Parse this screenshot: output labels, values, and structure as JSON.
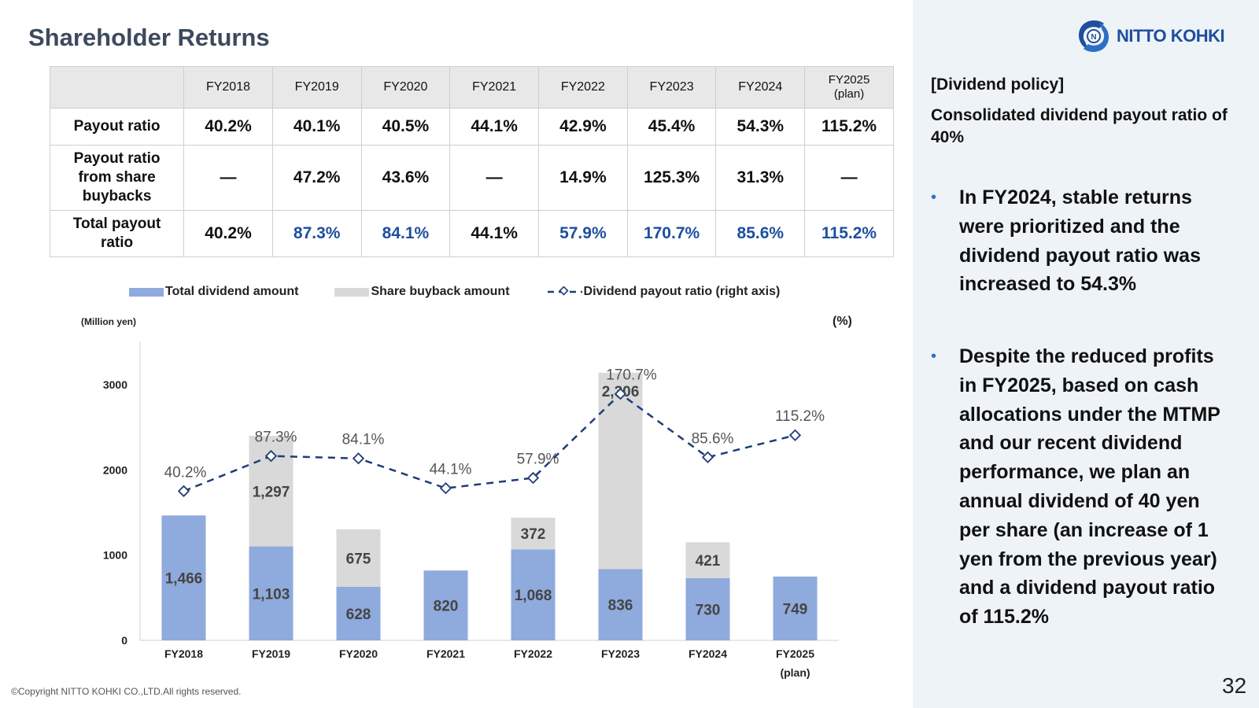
{
  "title": "Shareholder Returns",
  "logo": {
    "text": "NITTO KOHKI",
    "icon": "nitto-kohki-logo-mark",
    "color": "#1f4e9c"
  },
  "table": {
    "headers": [
      {
        "label": "FY2018",
        "sub": ""
      },
      {
        "label": "FY2019",
        "sub": ""
      },
      {
        "label": "FY2020",
        "sub": ""
      },
      {
        "label": "FY2021",
        "sub": ""
      },
      {
        "label": "FY2022",
        "sub": ""
      },
      {
        "label": "FY2023",
        "sub": ""
      },
      {
        "label": "FY2024",
        "sub": ""
      },
      {
        "label": "FY2025",
        "sub": "(plan)"
      }
    ],
    "rows": [
      {
        "label": "Payout ratio",
        "values": [
          "40.2%",
          "40.1%",
          "40.5%",
          "44.1%",
          "42.9%",
          "45.4%",
          "54.3%",
          "115.2%"
        ]
      },
      {
        "label": "Payout ratio from share buybacks",
        "values": [
          "—",
          "47.2%",
          "43.6%",
          "—",
          "14.9%",
          "125.3%",
          "31.3%",
          "—"
        ]
      },
      {
        "label": "Total payout ratio",
        "values": [
          "40.2%",
          "87.3%",
          "84.1%",
          "44.1%",
          "57.9%",
          "170.7%",
          "85.6%",
          "115.2%"
        ],
        "highlight": [
          false,
          true,
          true,
          false,
          true,
          true,
          true,
          true
        ]
      }
    ]
  },
  "legend": {
    "dividend": "Total dividend amount",
    "buyback": "Share buyback amount",
    "ratio": "Dividend payout ratio (right axis)"
  },
  "units": {
    "left": "(Million yen)",
    "right": "(%)"
  },
  "chart_data": {
    "type": "bar",
    "stacked": true,
    "categories": [
      "FY2018",
      "FY2019",
      "FY2020",
      "FY2021",
      "FY2022",
      "FY2023",
      "FY2024",
      "FY2025"
    ],
    "category_sublabels": [
      "",
      "",
      "",
      "",
      "",
      "",
      "",
      "(plan)"
    ],
    "series": [
      {
        "name": "Total dividend amount",
        "values": [
          1466,
          1103,
          628,
          820,
          1068,
          836,
          730,
          749
        ],
        "labels": [
          "1,466",
          "1,103",
          "628",
          "820",
          "1,068",
          "836",
          "730",
          "749"
        ],
        "color": "#8faadc"
      },
      {
        "name": "Share buyback amount",
        "values": [
          0,
          1297,
          675,
          0,
          372,
          2306,
          421,
          0
        ],
        "labels": [
          "",
          "1,297",
          "675",
          "",
          "372",
          "2,306",
          "421",
          ""
        ],
        "color": "#d9d9d9"
      }
    ],
    "line_series": {
      "name": "Dividend payout ratio (right axis)",
      "values": [
        40.2,
        87.3,
        84.1,
        44.1,
        57.9,
        170.7,
        85.6,
        115.2
      ],
      "labels": [
        "40.2%",
        "87.3%",
        "84.1%",
        "44.1%",
        "57.9%",
        "170.7%",
        "85.6%",
        "115.2%"
      ],
      "color": "#1f3d7a"
    },
    "ylim": [
      0,
      3500
    ],
    "yticks": [
      0,
      1000,
      2000,
      3000
    ],
    "y2lim": [
      -160,
      240
    ],
    "ylabel": "(Million yen)",
    "y2label": "(%)",
    "grid": false,
    "legend_position": "top"
  },
  "policy": {
    "heading": "[Dividend policy]",
    "text": "Consolidated dividend payout ratio of 40%",
    "bullets": [
      "In FY2024, stable returns were prioritized and the dividend payout ratio was increased to 54.3%",
      "Despite the reduced profits in FY2025, based on cash allocations under the MTMP and our recent dividend performance, we plan an annual dividend of 40 yen per share (an increase of 1 yen from the previous year) and a dividend payout ratio of 115.2%"
    ],
    "bullet_color": "#2e6fc4"
  },
  "footer": {
    "copyright": "©Copyright NITTO KOHKI CO.,LTD.All rights reserved.",
    "page": "32"
  }
}
